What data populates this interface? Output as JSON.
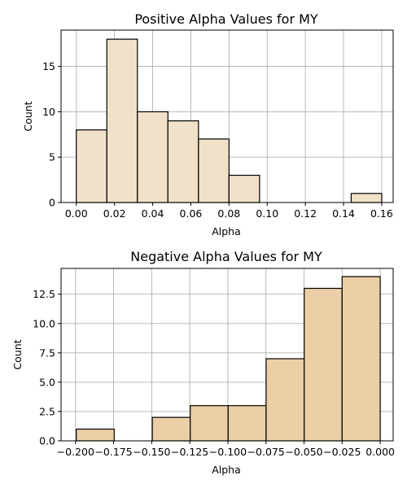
{
  "chart_data": [
    {
      "type": "bar",
      "title": "Positive Alpha Values for MY",
      "xlabel": "Alpha",
      "ylabel": "Count",
      "xlim": [
        -0.008,
        0.166
      ],
      "ylim": [
        0,
        19
      ],
      "grid": true,
      "bar_color": "#f0e1c8",
      "xticks": [
        0.0,
        0.02,
        0.04,
        0.06,
        0.08,
        0.1,
        0.12,
        0.14,
        0.16
      ],
      "xtick_labels": [
        "0.00",
        "0.02",
        "0.04",
        "0.06",
        "0.08",
        "0.10",
        "0.12",
        "0.14",
        "0.16"
      ],
      "yticks": [
        0,
        5,
        10,
        15
      ],
      "ytick_labels": [
        "0",
        "5",
        "10",
        "15"
      ],
      "bins": [
        {
          "x0": 0.0,
          "x1": 0.016,
          "value": 8
        },
        {
          "x0": 0.016,
          "x1": 0.032,
          "value": 18
        },
        {
          "x0": 0.032,
          "x1": 0.048,
          "value": 10
        },
        {
          "x0": 0.048,
          "x1": 0.064,
          "value": 9
        },
        {
          "x0": 0.064,
          "x1": 0.08,
          "value": 7
        },
        {
          "x0": 0.08,
          "x1": 0.096,
          "value": 3
        },
        {
          "x0": 0.096,
          "x1": 0.112,
          "value": 0
        },
        {
          "x0": 0.112,
          "x1": 0.128,
          "value": 0
        },
        {
          "x0": 0.128,
          "x1": 0.144,
          "value": 0
        },
        {
          "x0": 0.144,
          "x1": 0.16,
          "value": 1
        }
      ]
    },
    {
      "type": "bar",
      "title": "Negative Alpha Values for MY",
      "xlabel": "Alpha",
      "ylabel": "Count",
      "xlim": [
        -0.2095,
        0.0085
      ],
      "ylim": [
        0,
        14.7
      ],
      "grid": true,
      "bar_color": "#ebcfa7",
      "xticks": [
        -0.2,
        -0.175,
        -0.15,
        -0.125,
        -0.1,
        -0.075,
        -0.05,
        -0.025,
        0.0
      ],
      "xtick_labels": [
        "−0.200",
        "−0.175",
        "−0.150",
        "−0.125",
        "−0.100",
        "−0.075",
        "−0.050",
        "−0.025",
        "0.000"
      ],
      "yticks": [
        0.0,
        2.5,
        5.0,
        7.5,
        10.0,
        12.5
      ],
      "ytick_labels": [
        "0.0",
        "2.5",
        "5.0",
        "7.5",
        "10.0",
        "12.5"
      ],
      "bins": [
        {
          "x0": -0.1995,
          "x1": -0.1746,
          "value": 1
        },
        {
          "x0": -0.1746,
          "x1": -0.1496,
          "value": 0
        },
        {
          "x0": -0.1496,
          "x1": -0.1247,
          "value": 2
        },
        {
          "x0": -0.1247,
          "x1": -0.0998,
          "value": 3
        },
        {
          "x0": -0.0998,
          "x1": -0.0749,
          "value": 3
        },
        {
          "x0": -0.0749,
          "x1": -0.0499,
          "value": 7
        },
        {
          "x0": -0.0499,
          "x1": -0.025,
          "value": 13
        },
        {
          "x0": -0.025,
          "x1": 0.0,
          "value": 14
        }
      ]
    }
  ]
}
